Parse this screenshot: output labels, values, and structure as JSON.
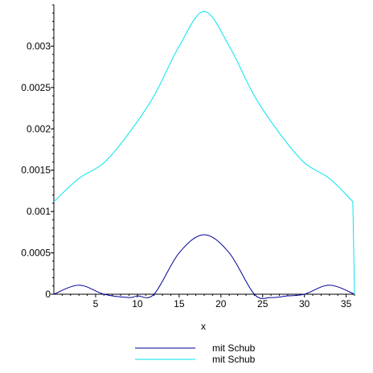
{
  "chart_data": {
    "type": "line",
    "xlabel": "x",
    "ylabel": "",
    "xlim": [
      0,
      36
    ],
    "ylim": [
      0,
      0.0035
    ],
    "x_ticks": [
      5,
      10,
      15,
      20,
      25,
      30,
      35
    ],
    "y_ticks": [
      0,
      0.0005,
      0.001,
      0.0015,
      0.002,
      0.0025,
      0.003
    ],
    "x_tick_labels": [
      "5",
      "10",
      "15",
      "20",
      "25",
      "30",
      "35"
    ],
    "y_tick_labels": [
      "0",
      "0.0005",
      "0.001",
      "0.0015",
      "0.002",
      "0.0025",
      "0.003"
    ],
    "grid": false,
    "legend_position": "bottom-center",
    "series": [
      {
        "name": "mit Schub",
        "color": "#000099",
        "x": [
          0,
          3,
          6,
          9,
          10,
          12,
          15,
          18,
          21,
          24,
          26,
          28,
          30,
          33,
          36
        ],
        "y": [
          0.0,
          0.00011,
          0.0,
          -4e-05,
          -2e-05,
          0.0,
          0.0005,
          0.00072,
          0.0005,
          0.0,
          -4e-05,
          -2e-05,
          0.0,
          0.00011,
          0.0
        ]
      },
      {
        "name": "mit Schub",
        "color": "#00e5ee",
        "x": [
          0,
          3,
          6,
          9,
          12,
          15,
          18,
          21,
          24,
          27,
          30,
          33,
          35.8,
          36
        ],
        "y": [
          0.00112,
          0.0014,
          0.00159,
          0.00195,
          0.0024,
          0.003,
          0.00342,
          0.003,
          0.0024,
          0.00195,
          0.00159,
          0.0014,
          0.00112,
          0.0
        ]
      }
    ]
  }
}
